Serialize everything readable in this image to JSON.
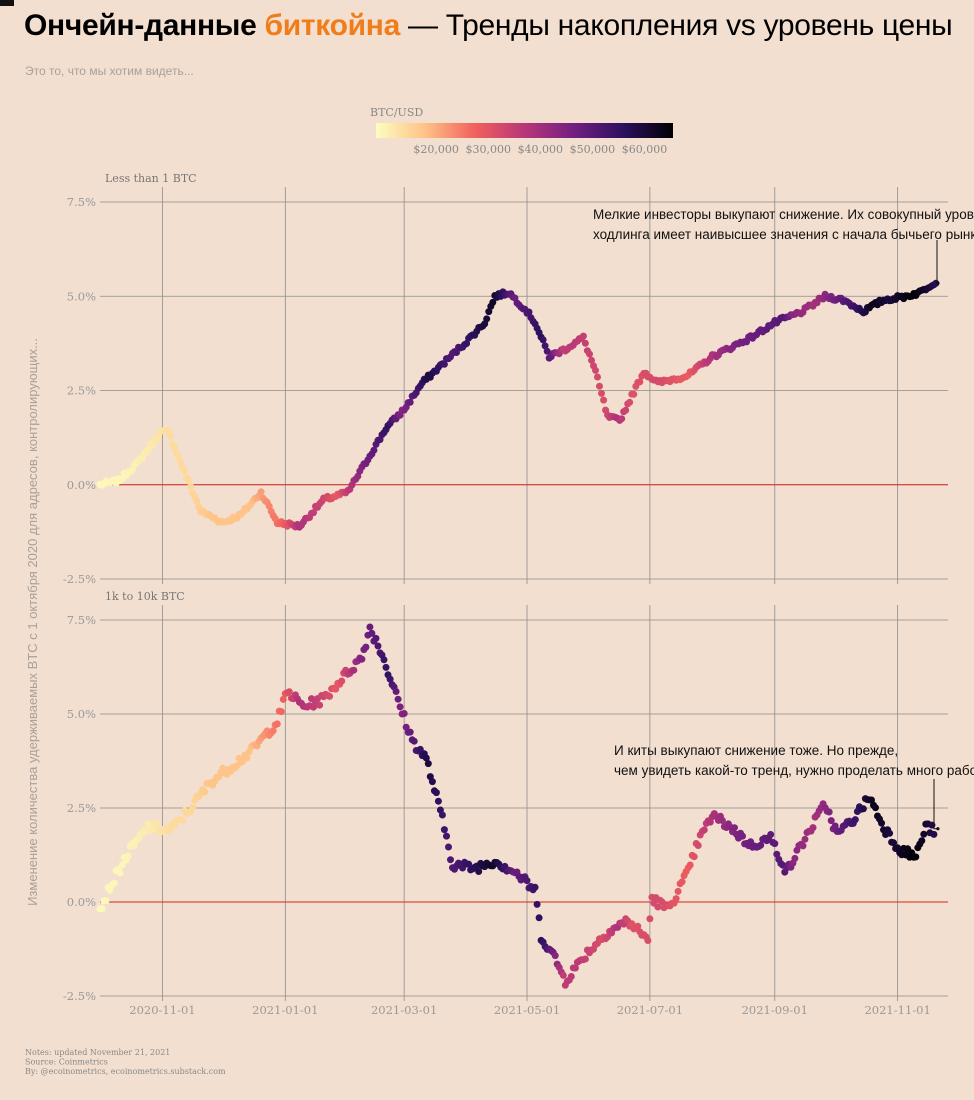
{
  "title": {
    "part1": "Ончейн-данные",
    "part2": "биткойна",
    "part3": "— Тренды накопления vs уровень цены"
  },
  "subtitle": "Это то, что мы хотим видеть...",
  "colors": {
    "background": "#f2dfd0",
    "accent": "#f07d1a",
    "zero_line": "#d9231f",
    "grid": "#8d8d8d",
    "colormap": [
      "#fcfdbf",
      "#fec287",
      "#f1605d",
      "#b73779",
      "#721f81",
      "#2c115f",
      "#000004"
    ]
  },
  "chart_data": {
    "type": "scatter",
    "y_axis_label": "Изменение количества удерживаемых BTC с 1 октября 2020 для адресов, контролирующих...",
    "x_range": [
      "2020-10-01",
      "2021-11-26"
    ],
    "x_ticks": [
      "2020-11-01",
      "2021-01-01",
      "2021-03-01",
      "2021-05-01",
      "2021-07-01",
      "2021-09-01",
      "2021-11-01"
    ],
    "color_scale": {
      "title": "BTC/USD",
      "range": [
        10000,
        67000
      ],
      "ticks": [
        "$20,000",
        "$30,000",
        "$40,000",
        "$50,000",
        "$60,000"
      ],
      "tick_values": [
        20000,
        30000,
        40000,
        50000,
        60000
      ]
    },
    "panels": [
      {
        "label": "Less than 1 BTC",
        "ylim": [
          -2.5,
          7.5
        ],
        "y_ticks": [
          "-2.5%",
          "0.0%",
          "2.5%",
          "5.0%",
          "7.5%"
        ],
        "y_tick_values": [
          -2.5,
          0,
          2.5,
          5,
          7.5
        ],
        "series_points": [
          [
            "2020-10-01",
            0.0
          ],
          [
            "2020-10-10",
            0.1
          ],
          [
            "2020-10-20",
            0.6
          ],
          [
            "2020-10-31",
            1.4
          ],
          [
            "2020-11-04",
            1.4
          ],
          [
            "2020-11-13",
            0.2
          ],
          [
            "2020-11-20",
            -0.7
          ],
          [
            "2020-12-01",
            -1.0
          ],
          [
            "2020-12-10",
            -0.8
          ],
          [
            "2020-12-20",
            -0.2
          ],
          [
            "2020-12-28",
            -1.0
          ],
          [
            "2021-01-08",
            -1.1
          ],
          [
            "2021-01-20",
            -0.4
          ],
          [
            "2021-02-01",
            -0.2
          ],
          [
            "2021-02-10",
            0.6
          ],
          [
            "2021-02-20",
            1.5
          ],
          [
            "2021-03-01",
            2.0
          ],
          [
            "2021-03-10",
            2.7
          ],
          [
            "2021-03-20",
            3.2
          ],
          [
            "2021-04-01",
            3.8
          ],
          [
            "2021-04-10",
            4.3
          ],
          [
            "2021-04-15",
            5.0
          ],
          [
            "2021-04-22",
            5.1
          ],
          [
            "2021-05-01",
            4.6
          ],
          [
            "2021-05-05",
            4.3
          ],
          [
            "2021-05-12",
            3.4
          ],
          [
            "2021-05-20",
            3.6
          ],
          [
            "2021-05-29",
            3.9
          ],
          [
            "2021-06-04",
            3.0
          ],
          [
            "2021-06-10",
            1.8
          ],
          [
            "2021-06-16",
            1.7
          ],
          [
            "2021-06-28",
            3.0
          ],
          [
            "2021-07-05",
            2.7
          ],
          [
            "2021-07-20",
            2.9
          ],
          [
            "2021-08-01",
            3.4
          ],
          [
            "2021-08-20",
            3.9
          ],
          [
            "2021-09-01",
            4.3
          ],
          [
            "2021-09-15",
            4.6
          ],
          [
            "2021-09-26",
            5.0
          ],
          [
            "2021-10-05",
            4.9
          ],
          [
            "2021-10-15",
            4.6
          ],
          [
            "2021-10-25",
            4.9
          ],
          [
            "2021-11-05",
            5.0
          ],
          [
            "2021-11-12",
            5.1
          ],
          [
            "2021-11-20",
            5.4
          ]
        ],
        "annotation": {
          "lines": [
            "Мелкие инвесторы выкупают снижение. Их совокупный уровень",
            "ходлинга имеет наивысшее значения с начала бычьего рынка."
          ],
          "point": [
            "2021-11-20",
            5.35
          ]
        }
      },
      {
        "label": "1k to 10k BTC",
        "ylim": [
          -2.5,
          7.5
        ],
        "y_ticks": [
          "-2.5%",
          "0.0%",
          "2.5%",
          "5.0%",
          "7.5%"
        ],
        "y_tick_values": [
          -2.5,
          0,
          2.5,
          5,
          7.5
        ],
        "series_points": [
          [
            "2020-10-01",
            -0.2
          ],
          [
            "2020-10-06",
            0.4
          ],
          [
            "2020-10-15",
            1.3
          ],
          [
            "2020-10-25",
            2.0
          ],
          [
            "2020-11-05",
            1.9
          ],
          [
            "2020-11-15",
            2.5
          ],
          [
            "2020-11-25",
            3.2
          ],
          [
            "2020-12-05",
            3.6
          ],
          [
            "2020-12-15",
            4.0
          ],
          [
            "2020-12-28",
            4.8
          ],
          [
            "2021-01-02",
            5.6
          ],
          [
            "2021-01-10",
            5.2
          ],
          [
            "2021-01-20",
            5.4
          ],
          [
            "2021-01-30",
            6.0
          ],
          [
            "2021-02-08",
            6.5
          ],
          [
            "2021-02-12",
            7.3
          ],
          [
            "2021-02-18",
            6.6
          ],
          [
            "2021-02-25",
            5.5
          ],
          [
            "2021-03-05",
            4.3
          ],
          [
            "2021-03-12",
            3.8
          ],
          [
            "2021-03-20",
            2.2
          ],
          [
            "2021-03-25",
            1.0
          ],
          [
            "2021-04-05",
            0.9
          ],
          [
            "2021-04-15",
            1.1
          ],
          [
            "2021-04-25",
            0.8
          ],
          [
            "2021-05-05",
            0.3
          ],
          [
            "2021-05-08",
            -0.9
          ],
          [
            "2021-05-15",
            -1.5
          ],
          [
            "2021-05-20",
            -2.1
          ],
          [
            "2021-05-30",
            -1.4
          ],
          [
            "2021-06-10",
            -0.8
          ],
          [
            "2021-06-20",
            -0.5
          ],
          [
            "2021-06-30",
            -1.0
          ],
          [
            "2021-07-02",
            0.1
          ],
          [
            "2021-07-10",
            -0.2
          ],
          [
            "2021-07-20",
            0.8
          ],
          [
            "2021-07-25",
            1.6
          ],
          [
            "2021-08-01",
            2.3
          ],
          [
            "2021-08-10",
            2.0
          ],
          [
            "2021-08-20",
            1.5
          ],
          [
            "2021-08-30",
            1.7
          ],
          [
            "2021-09-07",
            0.8
          ],
          [
            "2021-09-15",
            1.6
          ],
          [
            "2021-09-26",
            2.6
          ],
          [
            "2021-10-02",
            1.8
          ],
          [
            "2021-10-10",
            2.2
          ],
          [
            "2021-10-18",
            2.8
          ],
          [
            "2021-10-25",
            2.0
          ],
          [
            "2021-11-02",
            1.4
          ],
          [
            "2021-11-10",
            1.2
          ],
          [
            "2021-11-15",
            2.0
          ],
          [
            "2021-11-19",
            1.9
          ]
        ],
        "annotation": {
          "lines": [
            "И киты выкупают снижение тоже. Но прежде,",
            "чем увидеть какой-то тренд, нужно проделать много работы."
          ],
          "point": [
            "2021-11-20",
            1.95
          ]
        }
      }
    ],
    "price_points": [
      [
        "2020-10-01",
        10700
      ],
      [
        "2020-10-15",
        11400
      ],
      [
        "2020-10-25",
        13000
      ],
      [
        "2020-11-05",
        15500
      ],
      [
        "2020-11-15",
        16000
      ],
      [
        "2020-11-25",
        19000
      ],
      [
        "2020-12-05",
        19000
      ],
      [
        "2020-12-15",
        19400
      ],
      [
        "2020-12-20",
        23000
      ],
      [
        "2020-12-31",
        29000
      ],
      [
        "2021-01-08",
        40000
      ],
      [
        "2021-01-20",
        35000
      ],
      [
        "2021-01-27",
        30500
      ],
      [
        "2021-02-08",
        46000
      ],
      [
        "2021-02-21",
        57000
      ],
      [
        "2021-02-28",
        45000
      ],
      [
        "2021-03-13",
        61000
      ],
      [
        "2021-03-25",
        52000
      ],
      [
        "2021-04-14",
        63500
      ],
      [
        "2021-04-25",
        49000
      ],
      [
        "2021-05-08",
        58000
      ],
      [
        "2021-05-13",
        50000
      ],
      [
        "2021-05-19",
        37000
      ],
      [
        "2021-05-25",
        38000
      ],
      [
        "2021-06-08",
        33000
      ],
      [
        "2021-06-15",
        40000
      ],
      [
        "2021-06-22",
        32000
      ],
      [
        "2021-07-05",
        34000
      ],
      [
        "2021-07-20",
        29800
      ],
      [
        "2021-08-01",
        40000
      ],
      [
        "2021-08-14",
        47000
      ],
      [
        "2021-08-23",
        49500
      ],
      [
        "2021-09-06",
        52000
      ],
      [
        "2021-09-10",
        45000
      ],
      [
        "2021-09-21",
        41000
      ],
      [
        "2021-10-01",
        48000
      ],
      [
        "2021-10-10",
        55000
      ],
      [
        "2021-10-20",
        65000
      ],
      [
        "2021-10-28",
        61000
      ],
      [
        "2021-11-09",
        67000
      ],
      [
        "2021-11-20",
        59000
      ]
    ]
  },
  "notes": [
    "Notes: updated November 21, 2021",
    "Source: Coinmetrics",
    "By: @ecoinometrics, ecoinometrics.substack.com"
  ]
}
